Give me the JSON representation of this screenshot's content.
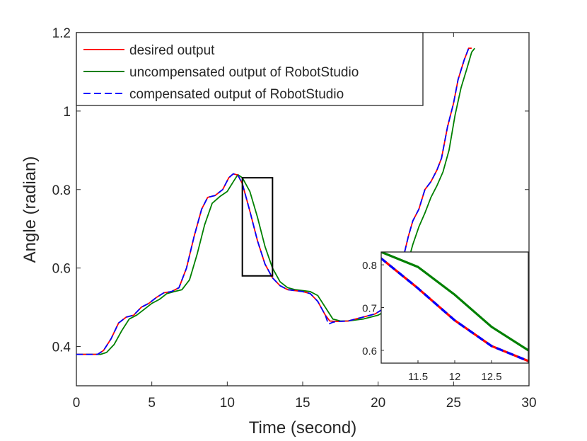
{
  "chart_data": {
    "type": "line",
    "title": "",
    "xlabel": "Time (second)",
    "ylabel": "Angle (radian)",
    "xlim": [
      0,
      30
    ],
    "ylim": [
      0.3,
      1.2
    ],
    "xticks": [
      "0",
      "5",
      "10",
      "15",
      "20",
      "25",
      "30"
    ],
    "yticks": [
      "0.4",
      "0.6",
      "0.8",
      "1",
      "1.2"
    ],
    "grid": false,
    "legend_position": "top-left",
    "series": [
      {
        "name": "desired output",
        "color": "#ff0000",
        "style": "solid",
        "points": [
          [
            0,
            0.38
          ],
          [
            1.4,
            0.38
          ],
          [
            1.8,
            0.39
          ],
          [
            2.3,
            0.42
          ],
          [
            2.8,
            0.46
          ],
          [
            3.3,
            0.475
          ],
          [
            3.8,
            0.48
          ],
          [
            4.3,
            0.5
          ],
          [
            4.8,
            0.51
          ],
          [
            5.3,
            0.525
          ],
          [
            5.8,
            0.537
          ],
          [
            6.3,
            0.54
          ],
          [
            6.8,
            0.55
          ],
          [
            7.3,
            0.6
          ],
          [
            7.8,
            0.68
          ],
          [
            8.3,
            0.75
          ],
          [
            8.7,
            0.78
          ],
          [
            9.2,
            0.785
          ],
          [
            9.7,
            0.8
          ],
          [
            10.1,
            0.83
          ],
          [
            10.4,
            0.84
          ],
          [
            10.7,
            0.837
          ],
          [
            11.0,
            0.815
          ],
          [
            11.5,
            0.745
          ],
          [
            12.0,
            0.67
          ],
          [
            12.5,
            0.61
          ],
          [
            13.0,
            0.575
          ],
          [
            13.5,
            0.555
          ],
          [
            14.0,
            0.545
          ],
          [
            15.0,
            0.54
          ],
          [
            15.5,
            0.535
          ],
          [
            16.0,
            0.515
          ],
          [
            16.5,
            0.48
          ],
          [
            16.8,
            0.465
          ],
          [
            17.3,
            0.464
          ],
          [
            18.0,
            0.465
          ],
          [
            19.0,
            0.475
          ],
          [
            19.8,
            0.483
          ],
          [
            20.5,
            0.5
          ],
          [
            21.0,
            0.53
          ],
          [
            21.5,
            0.6
          ],
          [
            22.0,
            0.68
          ],
          [
            22.3,
            0.72
          ],
          [
            22.7,
            0.75
          ],
          [
            23.1,
            0.8
          ],
          [
            23.5,
            0.82
          ],
          [
            23.9,
            0.85
          ],
          [
            24.2,
            0.88
          ],
          [
            24.6,
            0.96
          ],
          [
            25.0,
            1.02
          ],
          [
            25.3,
            1.08
          ],
          [
            25.7,
            1.13
          ],
          [
            26.0,
            1.16
          ],
          [
            26.2,
            1.16
          ]
        ]
      },
      {
        "name": "uncompensated output of RobotStudio",
        "color": "#008000",
        "style": "solid",
        "points": [
          [
            0,
            0.38
          ],
          [
            1.6,
            0.38
          ],
          [
            2.0,
            0.385
          ],
          [
            2.5,
            0.405
          ],
          [
            3.0,
            0.44
          ],
          [
            3.5,
            0.47
          ],
          [
            4.0,
            0.48
          ],
          [
            4.5,
            0.495
          ],
          [
            5.0,
            0.51
          ],
          [
            5.5,
            0.52
          ],
          [
            6.0,
            0.535
          ],
          [
            6.5,
            0.54
          ],
          [
            7.0,
            0.545
          ],
          [
            7.5,
            0.57
          ],
          [
            8.0,
            0.635
          ],
          [
            8.5,
            0.71
          ],
          [
            9.0,
            0.765
          ],
          [
            9.5,
            0.782
          ],
          [
            10.0,
            0.795
          ],
          [
            10.4,
            0.82
          ],
          [
            10.7,
            0.838
          ],
          [
            11.0,
            0.83
          ],
          [
            11.5,
            0.795
          ],
          [
            12.0,
            0.73
          ],
          [
            12.5,
            0.655
          ],
          [
            13.0,
            0.6
          ],
          [
            13.5,
            0.565
          ],
          [
            14.0,
            0.55
          ],
          [
            14.5,
            0.545
          ],
          [
            15.5,
            0.54
          ],
          [
            16.0,
            0.53
          ],
          [
            16.5,
            0.5
          ],
          [
            17.0,
            0.47
          ],
          [
            17.5,
            0.465
          ],
          [
            18.0,
            0.465
          ],
          [
            19.0,
            0.47
          ],
          [
            20.0,
            0.48
          ],
          [
            20.7,
            0.495
          ],
          [
            21.3,
            0.53
          ],
          [
            21.8,
            0.59
          ],
          [
            22.3,
            0.66
          ],
          [
            22.7,
            0.705
          ],
          [
            23.1,
            0.74
          ],
          [
            23.5,
            0.78
          ],
          [
            23.9,
            0.81
          ],
          [
            24.3,
            0.845
          ],
          [
            24.7,
            0.9
          ],
          [
            25.1,
            0.99
          ],
          [
            25.5,
            1.06
          ],
          [
            25.9,
            1.11
          ],
          [
            26.2,
            1.15
          ],
          [
            26.4,
            1.16
          ]
        ]
      },
      {
        "name": "compensated output of RobotStudio",
        "color": "#0000ff",
        "style": "dashed",
        "points": [
          [
            0,
            0.38
          ],
          [
            1.4,
            0.38
          ],
          [
            1.8,
            0.39
          ],
          [
            2.3,
            0.42
          ],
          [
            2.8,
            0.46
          ],
          [
            3.3,
            0.475
          ],
          [
            3.8,
            0.48
          ],
          [
            4.3,
            0.5
          ],
          [
            4.8,
            0.51
          ],
          [
            5.3,
            0.525
          ],
          [
            5.8,
            0.537
          ],
          [
            6.3,
            0.54
          ],
          [
            6.8,
            0.55
          ],
          [
            7.3,
            0.6
          ],
          [
            7.8,
            0.68
          ],
          [
            8.3,
            0.75
          ],
          [
            8.7,
            0.78
          ],
          [
            9.2,
            0.785
          ],
          [
            9.7,
            0.8
          ],
          [
            10.1,
            0.83
          ],
          [
            10.4,
            0.84
          ],
          [
            10.7,
            0.837
          ],
          [
            11.0,
            0.815
          ],
          [
            11.5,
            0.745
          ],
          [
            12.0,
            0.67
          ],
          [
            12.5,
            0.61
          ],
          [
            13.0,
            0.575
          ],
          [
            13.5,
            0.555
          ],
          [
            14.0,
            0.545
          ],
          [
            15.0,
            0.54
          ],
          [
            15.5,
            0.535
          ],
          [
            16.0,
            0.515
          ],
          [
            16.5,
            0.48
          ],
          [
            16.7,
            0.457
          ],
          [
            17.0,
            0.462
          ],
          [
            17.3,
            0.464
          ],
          [
            18.0,
            0.465
          ],
          [
            19.0,
            0.475
          ],
          [
            19.8,
            0.483
          ],
          [
            20.5,
            0.5
          ],
          [
            21.0,
            0.53
          ],
          [
            21.5,
            0.6
          ],
          [
            22.0,
            0.68
          ],
          [
            22.3,
            0.72
          ],
          [
            22.7,
            0.75
          ],
          [
            23.1,
            0.8
          ],
          [
            23.5,
            0.82
          ],
          [
            23.9,
            0.85
          ],
          [
            24.2,
            0.88
          ],
          [
            24.6,
            0.96
          ],
          [
            25.0,
            1.02
          ],
          [
            25.3,
            1.08
          ],
          [
            25.7,
            1.13
          ],
          [
            26.0,
            1.16
          ],
          [
            26.2,
            1.16
          ]
        ]
      }
    ],
    "zoom_box": {
      "xlim": [
        11,
        13
      ],
      "ylim": [
        0.58,
        0.83
      ],
      "color": "#000000"
    },
    "inset": {
      "xlim": [
        11,
        13
      ],
      "ylim": [
        0.57,
        0.83
      ],
      "xticks": [
        "11.5",
        "12",
        "12.5"
      ],
      "yticks": [
        "0.6",
        "0.7",
        "0.8"
      ]
    }
  }
}
